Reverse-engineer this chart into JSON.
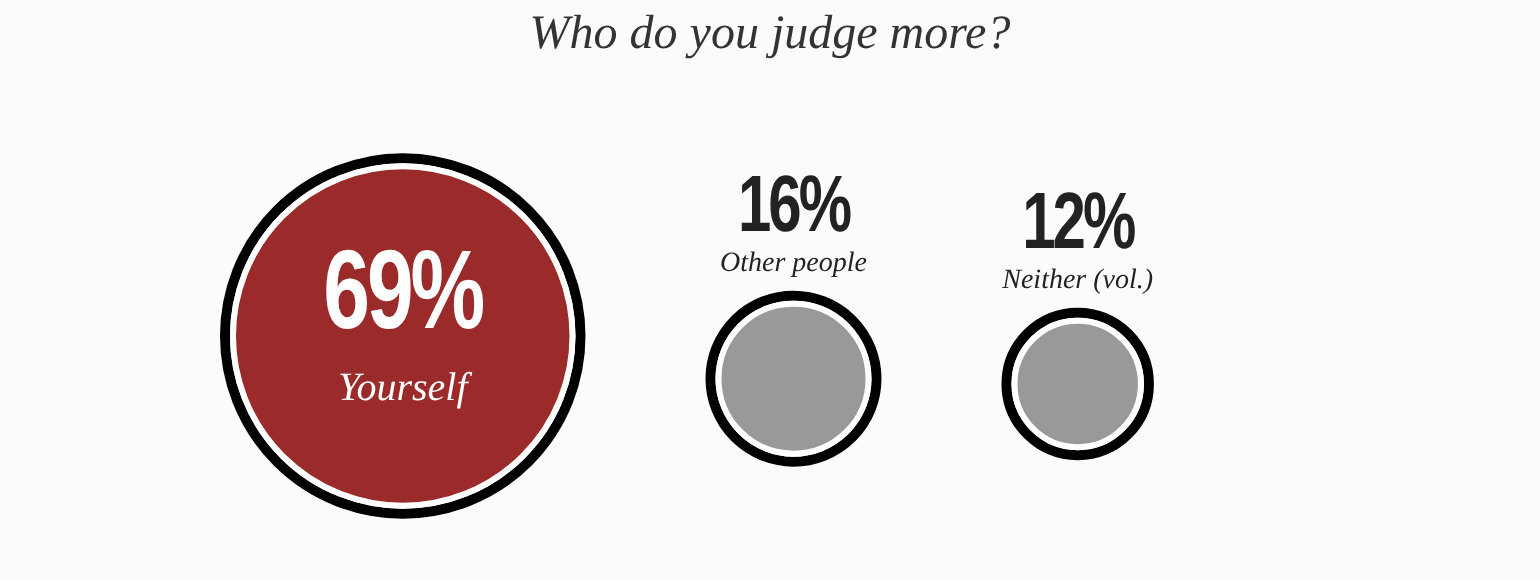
{
  "chart_data": {
    "type": "other",
    "title": "Who do you judge more?",
    "categories": [
      "Yourself",
      "Other people",
      "Neither (vol.)"
    ],
    "values": [
      69,
      16,
      12
    ],
    "value_labels": [
      "69%",
      "16%",
      "12%"
    ],
    "colors": [
      "#9b2a2a",
      "#999999",
      "#999999"
    ]
  }
}
